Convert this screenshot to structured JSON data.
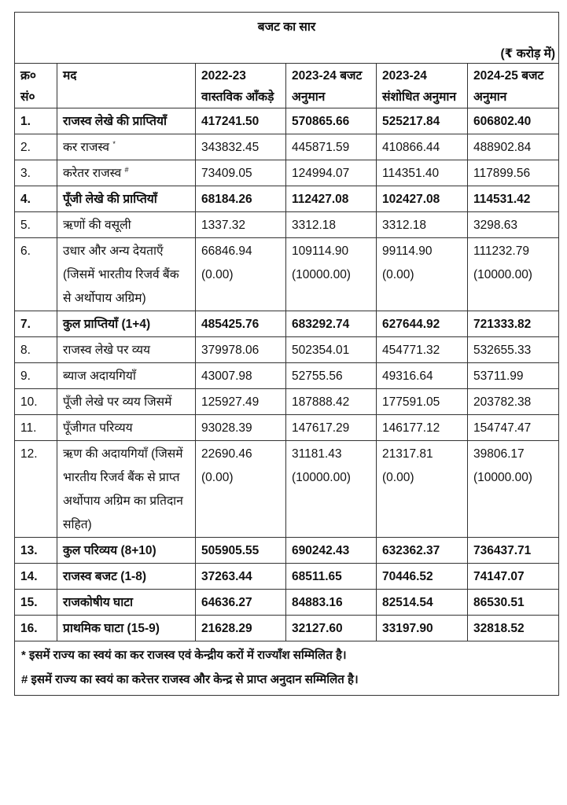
{
  "title": "बजट का सार",
  "unit": "(₹ करोड़ में)",
  "headers": {
    "sno": "क्र० सं०",
    "item": "मद",
    "c1": "2022-23 वास्तविक आँकड़े",
    "c2": "2023-24 बजट अनुमान",
    "c3": "2023-24 संशोधित अनुमान",
    "c4": "2024-25 बजट अनुमान"
  },
  "rows": [
    {
      "sno": "1.",
      "item": "राजस्व लेखे की प्राप्तियाँ",
      "c1": "417241.50",
      "c2": "570865.66",
      "c3": "525217.84",
      "c4": "606802.40",
      "bold": true
    },
    {
      "sno": "2.",
      "item": "कर राजस्व",
      "mark": "*",
      "c1": "343832.45",
      "c2": "445871.59",
      "c3": "410866.44",
      "c4": "488902.84"
    },
    {
      "sno": "3.",
      "item": "करेतर राजस्व",
      "mark": "#",
      "c1": "73409.05",
      "c2": "124994.07",
      "c3": "114351.40",
      "c4": "117899.56"
    },
    {
      "sno": "4.",
      "item": "पूँजी लेखे की प्राप्तियाँ",
      "c1": "68184.26",
      "c2": "112427.08",
      "c3": "102427.08",
      "c4": "114531.42",
      "bold": true
    },
    {
      "sno": "5.",
      "item": "ऋणों की वसूली",
      "c1": "1337.32",
      "c2": "3312.18",
      "c3": "3312.18",
      "c4": "3298.63"
    },
    {
      "sno": "6.",
      "item": "उधार और अन्य देयताएँ (जिसमें भारतीय रिजर्व बैंक से अर्थोपाय अग्रिम)",
      "c1": "66846.94",
      "c1b": "(0.00)",
      "c2": "109114.90",
      "c2b": "(10000.00)",
      "c3": "99114.90",
      "c3b": "(0.00)",
      "c4": "111232.79",
      "c4b": "(10000.00)"
    },
    {
      "sno": "7.",
      "item": "कुल प्राप्तियाँ (1+4)",
      "c1": "485425.76",
      "c2": "683292.74",
      "c3": "627644.92",
      "c4": "721333.82",
      "bold": true
    },
    {
      "sno": "8.",
      "item": "राजस्व लेखे पर व्यय",
      "c1": "379978.06",
      "c2": "502354.01",
      "c3": "454771.32",
      "c4": "532655.33"
    },
    {
      "sno": "9.",
      "item": "ब्याज अदायगियाँ",
      "c1": "43007.98",
      "c2": "52755.56",
      "c3": "49316.64",
      "c4": "53711.99"
    },
    {
      "sno": "10.",
      "item": "पूँजी लेखे पर व्यय जिसमें",
      "c1": "125927.49",
      "c2": "187888.42",
      "c3": "177591.05",
      "c4": "203782.38"
    },
    {
      "sno": "11.",
      "item": "पूँजीगत परिव्यय",
      "c1": "93028.39",
      "c2": "147617.29",
      "c3": "146177.12",
      "c4": "154747.47"
    },
    {
      "sno": "12.",
      "item": "ऋण की अदायगियाँ (जिसमें भारतीय रिजर्व बैंक से प्राप्त अर्थोपाय अग्रिम का प्रतिदान सहित)",
      "c1": "22690.46",
      "c1b": "(0.00)",
      "c2": "31181.43",
      "c2b": "(10000.00)",
      "c3": "21317.81",
      "c3b": "(0.00)",
      "c4": "39806.17",
      "c4b": "(10000.00)"
    },
    {
      "sno": "13.",
      "item": "कुल परिव्यय (8+10)",
      "c1": "505905.55",
      "c2": "690242.43",
      "c3": "632362.37",
      "c4": "736437.71",
      "bold": true
    },
    {
      "sno": "14.",
      "item": "राजस्व बजट (1-8)",
      "c1": "37263.44",
      "c2": "68511.65",
      "c3": "70446.52",
      "c4": "74147.07",
      "bold": true
    },
    {
      "sno": "15.",
      "item": "राजकोषीय घाटा",
      "c1": "64636.27",
      "c2": "84883.16",
      "c3": "82514.54",
      "c4": "86530.51",
      "bold": true
    },
    {
      "sno": "16.",
      "item": "प्राथमिक घाटा (15-9)",
      "c1": "21628.29",
      "c2": "32127.60",
      "c3": "33197.90",
      "c4": "32818.52",
      "bold": true
    }
  ],
  "footnotes": [
    "* इसमें राज्य का स्वयं का कर राजस्व एवं केन्द्रीय करों में राज्याँश सम्मिलित है।",
    "# इसमें राज्य का स्वयं का करेत्तर राजस्व और केन्द्र से प्राप्त अनुदान सम्मिलित है।"
  ]
}
